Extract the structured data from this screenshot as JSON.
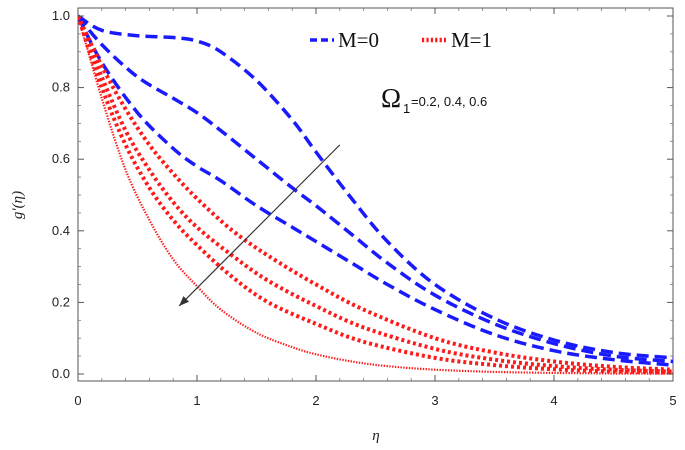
{
  "chart_data": {
    "type": "line",
    "title": "",
    "xlabel": "η",
    "ylabel": "g'(η)",
    "xlim": [
      0,
      5.05
    ],
    "ylim": [
      0,
      1.02
    ],
    "xticks": [
      "0",
      "1",
      "2",
      "3",
      "4",
      "5"
    ],
    "yticks": [
      "0.0",
      "0.2",
      "0.4",
      "0.6",
      "0.8",
      "1.0"
    ],
    "legend_placement": "top-center",
    "legend": [
      {
        "label": "M=0",
        "color": "#1a1aff",
        "style": "dashed"
      },
      {
        "label": "M=1",
        "color": "#ff1a1a",
        "style": "dotted"
      }
    ],
    "annotation": {
      "symbol": "Ω",
      "subscript": "1",
      "text": "=0.2, 0.4, 0.6"
    },
    "arrow": {
      "from": [
        2.2,
        0.64
      ],
      "to": [
        0.85,
        0.19
      ]
    },
    "series": [
      {
        "name": "M=0",
        "color": "#1a1aff",
        "style": "dashed",
        "x": [
          0,
          0.2,
          0.5,
          0.8,
          1.0,
          1.2,
          1.5,
          1.8,
          2.0,
          2.3,
          2.6,
          3.0,
          3.5,
          4.0,
          4.5,
          5.0
        ],
        "y": [
          1.0,
          0.96,
          0.945,
          0.94,
          0.93,
          0.9,
          0.82,
          0.71,
          0.62,
          0.49,
          0.37,
          0.25,
          0.155,
          0.095,
          0.06,
          0.045
        ]
      },
      {
        "name": "M=0",
        "color": "#1a1aff",
        "style": "dashed",
        "x": [
          0,
          0.2,
          0.5,
          0.8,
          1.0,
          1.2,
          1.5,
          1.8,
          2.0,
          2.3,
          2.6,
          3.0,
          3.5,
          4.0,
          4.5,
          5.0
        ],
        "y": [
          1.0,
          0.92,
          0.83,
          0.77,
          0.73,
          0.68,
          0.6,
          0.52,
          0.47,
          0.39,
          0.31,
          0.22,
          0.14,
          0.085,
          0.05,
          0.035
        ]
      },
      {
        "name": "M=0",
        "color": "#1a1aff",
        "style": "dashed",
        "x": [
          0,
          0.2,
          0.5,
          0.8,
          1.0,
          1.2,
          1.5,
          1.8,
          2.0,
          2.3,
          2.6,
          3.0,
          3.5,
          4.0,
          4.5,
          5.0
        ],
        "y": [
          1.0,
          0.87,
          0.73,
          0.63,
          0.58,
          0.54,
          0.47,
          0.41,
          0.37,
          0.31,
          0.25,
          0.18,
          0.11,
          0.065,
          0.04,
          0.025
        ]
      },
      {
        "name": "M=1",
        "color": "#ff1a1a",
        "style": "dotted",
        "x": [
          0,
          0.2,
          0.4,
          0.6,
          0.8,
          1.0,
          1.3,
          1.6,
          2.0,
          2.4,
          3.0,
          3.5,
          4.0,
          4.5,
          5.0
        ],
        "y": [
          1.0,
          0.86,
          0.74,
          0.64,
          0.56,
          0.49,
          0.4,
          0.33,
          0.25,
          0.18,
          0.1,
          0.06,
          0.035,
          0.02,
          0.012
        ]
      },
      {
        "name": "M=1",
        "color": "#ff1a1a",
        "style": "dotted",
        "x": [
          0,
          0.2,
          0.4,
          0.6,
          0.8,
          1.0,
          1.3,
          1.6,
          2.0,
          2.4,
          3.0,
          3.5,
          4.0,
          4.5,
          5.0
        ],
        "y": [
          1.0,
          0.83,
          0.68,
          0.57,
          0.48,
          0.41,
          0.33,
          0.26,
          0.19,
          0.13,
          0.07,
          0.04,
          0.022,
          0.012,
          0.007
        ]
      },
      {
        "name": "M=1",
        "color": "#ff1a1a",
        "style": "dotted",
        "x": [
          0,
          0.2,
          0.4,
          0.6,
          0.8,
          1.0,
          1.3,
          1.6,
          2.0,
          2.4,
          3.0,
          3.5,
          4.0,
          4.5,
          5.0
        ],
        "y": [
          1.0,
          0.8,
          0.64,
          0.52,
          0.43,
          0.36,
          0.27,
          0.2,
          0.14,
          0.09,
          0.045,
          0.025,
          0.013,
          0.007,
          0.004
        ]
      },
      {
        "name": "M=1",
        "color": "#ff1a1a",
        "style": "dotted-fine",
        "x": [
          0,
          0.2,
          0.4,
          0.6,
          0.8,
          1.0,
          1.2,
          1.5,
          1.8,
          2.0,
          2.3,
          2.6,
          3.0,
          3.5,
          4.0,
          4.5,
          5.0
        ],
        "y": [
          1.0,
          0.77,
          0.57,
          0.43,
          0.32,
          0.245,
          0.18,
          0.115,
          0.075,
          0.055,
          0.035,
          0.022,
          0.012,
          0.006,
          0.003,
          0.0015,
          0.001
        ]
      }
    ]
  }
}
